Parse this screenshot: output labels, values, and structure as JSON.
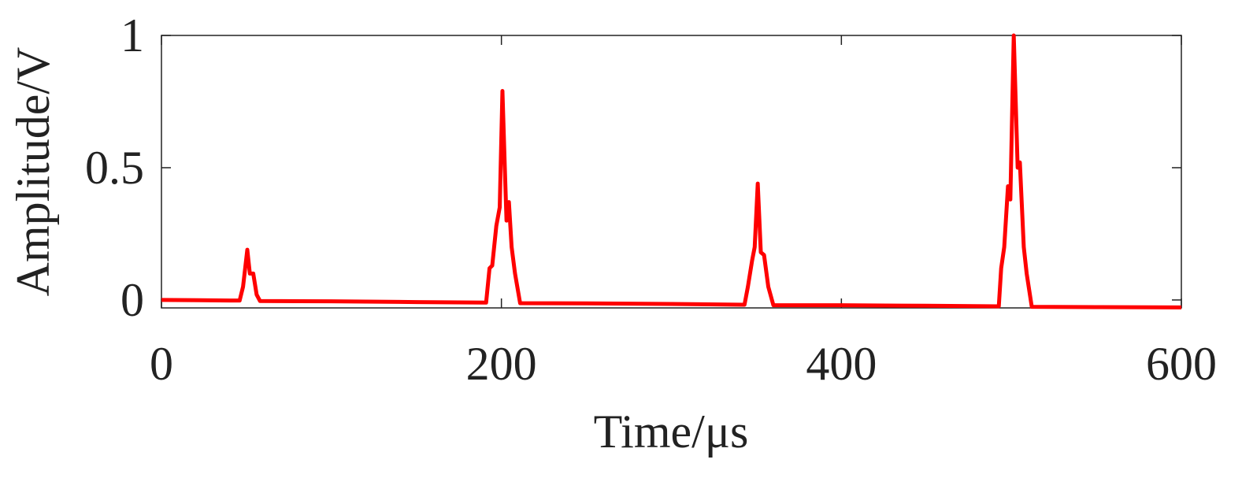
{
  "chart_data": {
    "type": "line",
    "xlabel": "Time/μs",
    "ylabel": "Amplitude/V",
    "x": [
      0,
      40,
      46,
      48,
      50.5,
      52,
      54,
      56,
      58,
      100,
      150,
      191,
      193,
      194.6,
      197,
      199,
      200.6,
      202,
      203,
      204.4,
      206,
      208,
      211,
      250,
      300,
      343,
      345,
      347.5,
      349,
      350.8,
      352.6,
      354.5,
      357,
      360,
      400,
      450,
      492.6,
      494,
      495.8,
      498,
      499.4,
      501.4,
      503.7,
      505,
      507.3,
      509,
      512,
      550,
      600
    ],
    "values": [
      0,
      -0.002,
      -0.002,
      0.05,
      0.19,
      0.1,
      0.1,
      0.02,
      -0.004,
      -0.005,
      -0.008,
      -0.01,
      0.12,
      0.13,
      0.28,
      0.35,
      0.79,
      0.5,
      0.3,
      0.37,
      0.2,
      0.1,
      -0.012,
      -0.013,
      -0.015,
      -0.018,
      0.05,
      0.15,
      0.2,
      0.44,
      0.18,
      0.17,
      0.05,
      -0.02,
      -0.02,
      -0.022,
      -0.024,
      0.12,
      0.2,
      0.43,
      0.38,
      1.0,
      0.5,
      0.52,
      0.2,
      0.1,
      -0.026,
      -0.027,
      -0.028
    ],
    "color": "#ff0000",
    "xlim": [
      0,
      600
    ],
    "xticks": [
      0,
      200,
      400,
      600
    ],
    "ylim": [
      -0.03,
      1
    ],
    "yticks": [
      0,
      0.5,
      1
    ]
  }
}
